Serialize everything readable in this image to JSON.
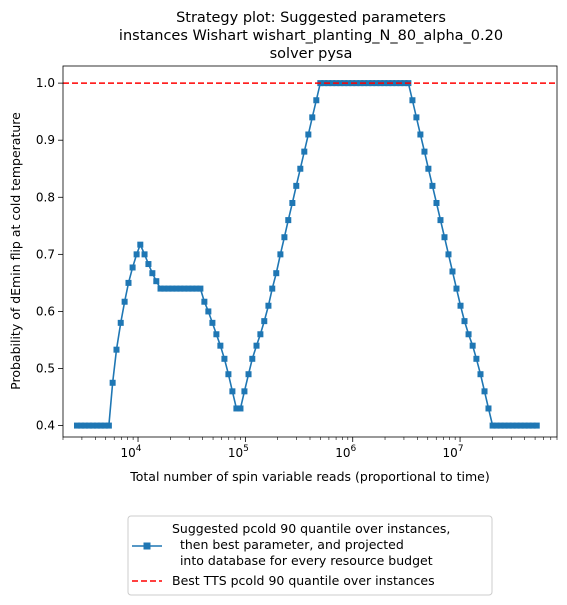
{
  "chart_data": {
    "type": "line",
    "title_lines": [
      "Strategy plot: Suggested parameters",
      "instances Wishart wishart_planting_N_80_alpha_0.20",
      "solver pysa"
    ],
    "xlabel": "Total number of spin variable reads (proportional to time)",
    "ylabel": "Probability of dEmin flip at cold temperature",
    "xscale": "log",
    "xlim": [
      2000,
      80000000
    ],
    "ylim": [
      0.38,
      1.03
    ],
    "x_ticks": [
      {
        "value": 10000,
        "base": "10",
        "exp": "4"
      },
      {
        "value": 100000,
        "base": "10",
        "exp": "5"
      },
      {
        "value": 1000000,
        "base": "10",
        "exp": "6"
      },
      {
        "value": 10000000,
        "base": "10",
        "exp": "7"
      }
    ],
    "y_ticks": [
      {
        "value": 0.4,
        "label": "0.4"
      },
      {
        "value": 0.5,
        "label": "0.5"
      },
      {
        "value": 0.6,
        "label": "0.6"
      },
      {
        "value": 0.7,
        "label": "0.7"
      },
      {
        "value": 0.8,
        "label": "0.8"
      },
      {
        "value": 0.9,
        "label": "0.9"
      },
      {
        "value": 1.0,
        "label": "1.0"
      }
    ],
    "legend_position": "below",
    "series": [
      {
        "name_lines": [
          "Suggested pcold 90 quantile over instances,",
          "  then best parameter, and projected",
          "  into database for every resource budget"
        ],
        "color": "#1f77b4",
        "style": "solid",
        "marker": "square",
        "points": [
          [
            2700,
            0.4
          ],
          [
            2950,
            0.4
          ],
          [
            3200,
            0.4
          ],
          [
            3500,
            0.4
          ],
          [
            3800,
            0.4
          ],
          [
            4150,
            0.4
          ],
          [
            4500,
            0.4
          ],
          [
            4900,
            0.4
          ],
          [
            5350,
            0.4
          ],
          [
            5800,
            0.475
          ],
          [
            6300,
            0.533
          ],
          [
            6900,
            0.58
          ],
          [
            7500,
            0.617
          ],
          [
            8150,
            0.65
          ],
          [
            8900,
            0.677
          ],
          [
            9700,
            0.7
          ],
          [
            10500,
            0.717
          ],
          [
            11500,
            0.7
          ],
          [
            12500,
            0.683
          ],
          [
            13600,
            0.667
          ],
          [
            14800,
            0.653
          ],
          [
            16200,
            0.64
          ],
          [
            17600,
            0.64
          ],
          [
            19200,
            0.64
          ],
          [
            20900,
            0.64
          ],
          [
            22800,
            0.64
          ],
          [
            24800,
            0.64
          ],
          [
            27000,
            0.64
          ],
          [
            29500,
            0.64
          ],
          [
            32100,
            0.64
          ],
          [
            35000,
            0.64
          ],
          [
            38100,
            0.64
          ],
          [
            41500,
            0.617
          ],
          [
            45200,
            0.6
          ],
          [
            49300,
            0.58
          ],
          [
            53700,
            0.56
          ],
          [
            58500,
            0.54
          ],
          [
            63800,
            0.517
          ],
          [
            69500,
            0.49
          ],
          [
            75700,
            0.46
          ],
          [
            82500,
            0.43
          ],
          [
            90000,
            0.43
          ],
          [
            98000,
            0.46
          ],
          [
            107000,
            0.49
          ],
          [
            116000,
            0.517
          ],
          [
            127000,
            0.54
          ],
          [
            138000,
            0.56
          ],
          [
            150000,
            0.583
          ],
          [
            164000,
            0.61
          ],
          [
            178000,
            0.64
          ],
          [
            194000,
            0.667
          ],
          [
            212000,
            0.7
          ],
          [
            231000,
            0.73
          ],
          [
            251000,
            0.76
          ],
          [
            274000,
            0.79
          ],
          [
            298000,
            0.82
          ],
          [
            325000,
            0.85
          ],
          [
            354000,
            0.88
          ],
          [
            386000,
            0.91
          ],
          [
            420000,
            0.94
          ],
          [
            458000,
            0.97
          ],
          [
            499000,
            1.0
          ],
          [
            544000,
            1.0
          ],
          [
            592000,
            1.0
          ],
          [
            645000,
            1.0
          ],
          [
            703000,
            1.0
          ],
          [
            766000,
            1.0
          ],
          [
            835000,
            1.0
          ],
          [
            910000,
            1.0
          ],
          [
            990000,
            1.0
          ],
          [
            1080000,
            1.0
          ],
          [
            1180000,
            1.0
          ],
          [
            1280000,
            1.0
          ],
          [
            1400000,
            1.0
          ],
          [
            1520000,
            1.0
          ],
          [
            1660000,
            1.0
          ],
          [
            1810000,
            1.0
          ],
          [
            1970000,
            1.0
          ],
          [
            2150000,
            1.0
          ],
          [
            2340000,
            1.0
          ],
          [
            2550000,
            1.0
          ],
          [
            2780000,
            1.0
          ],
          [
            3030000,
            1.0
          ],
          [
            3300000,
            1.0
          ],
          [
            3600000,
            0.97
          ],
          [
            3920000,
            0.94
          ],
          [
            4270000,
            0.91
          ],
          [
            4660000,
            0.88
          ],
          [
            5070000,
            0.85
          ],
          [
            5530000,
            0.82
          ],
          [
            6030000,
            0.79
          ],
          [
            6570000,
            0.76
          ],
          [
            7160000,
            0.73
          ],
          [
            7800000,
            0.7
          ],
          [
            8500000,
            0.67
          ],
          [
            9260000,
            0.64
          ],
          [
            10100000,
            0.61
          ],
          [
            11000000,
            0.583
          ],
          [
            12000000,
            0.56
          ],
          [
            13100000,
            0.54
          ],
          [
            14200000,
            0.517
          ],
          [
            15500000,
            0.49
          ],
          [
            16900000,
            0.46
          ],
          [
            18400000,
            0.43
          ],
          [
            20100000,
            0.4
          ],
          [
            21900000,
            0.4
          ],
          [
            23900000,
            0.4
          ],
          [
            26000000,
            0.4
          ],
          [
            28400000,
            0.4
          ],
          [
            30900000,
            0.4
          ],
          [
            33700000,
            0.4
          ],
          [
            36700000,
            0.4
          ],
          [
            40000000,
            0.4
          ],
          [
            43600000,
            0.4
          ],
          [
            47500000,
            0.4
          ],
          [
            51800000,
            0.4
          ]
        ]
      },
      {
        "name_lines": [
          "Best TTS pcold 90 quantile over instances"
        ],
        "color": "#ff0000",
        "style": "dashed",
        "hline": 1.0
      }
    ]
  }
}
